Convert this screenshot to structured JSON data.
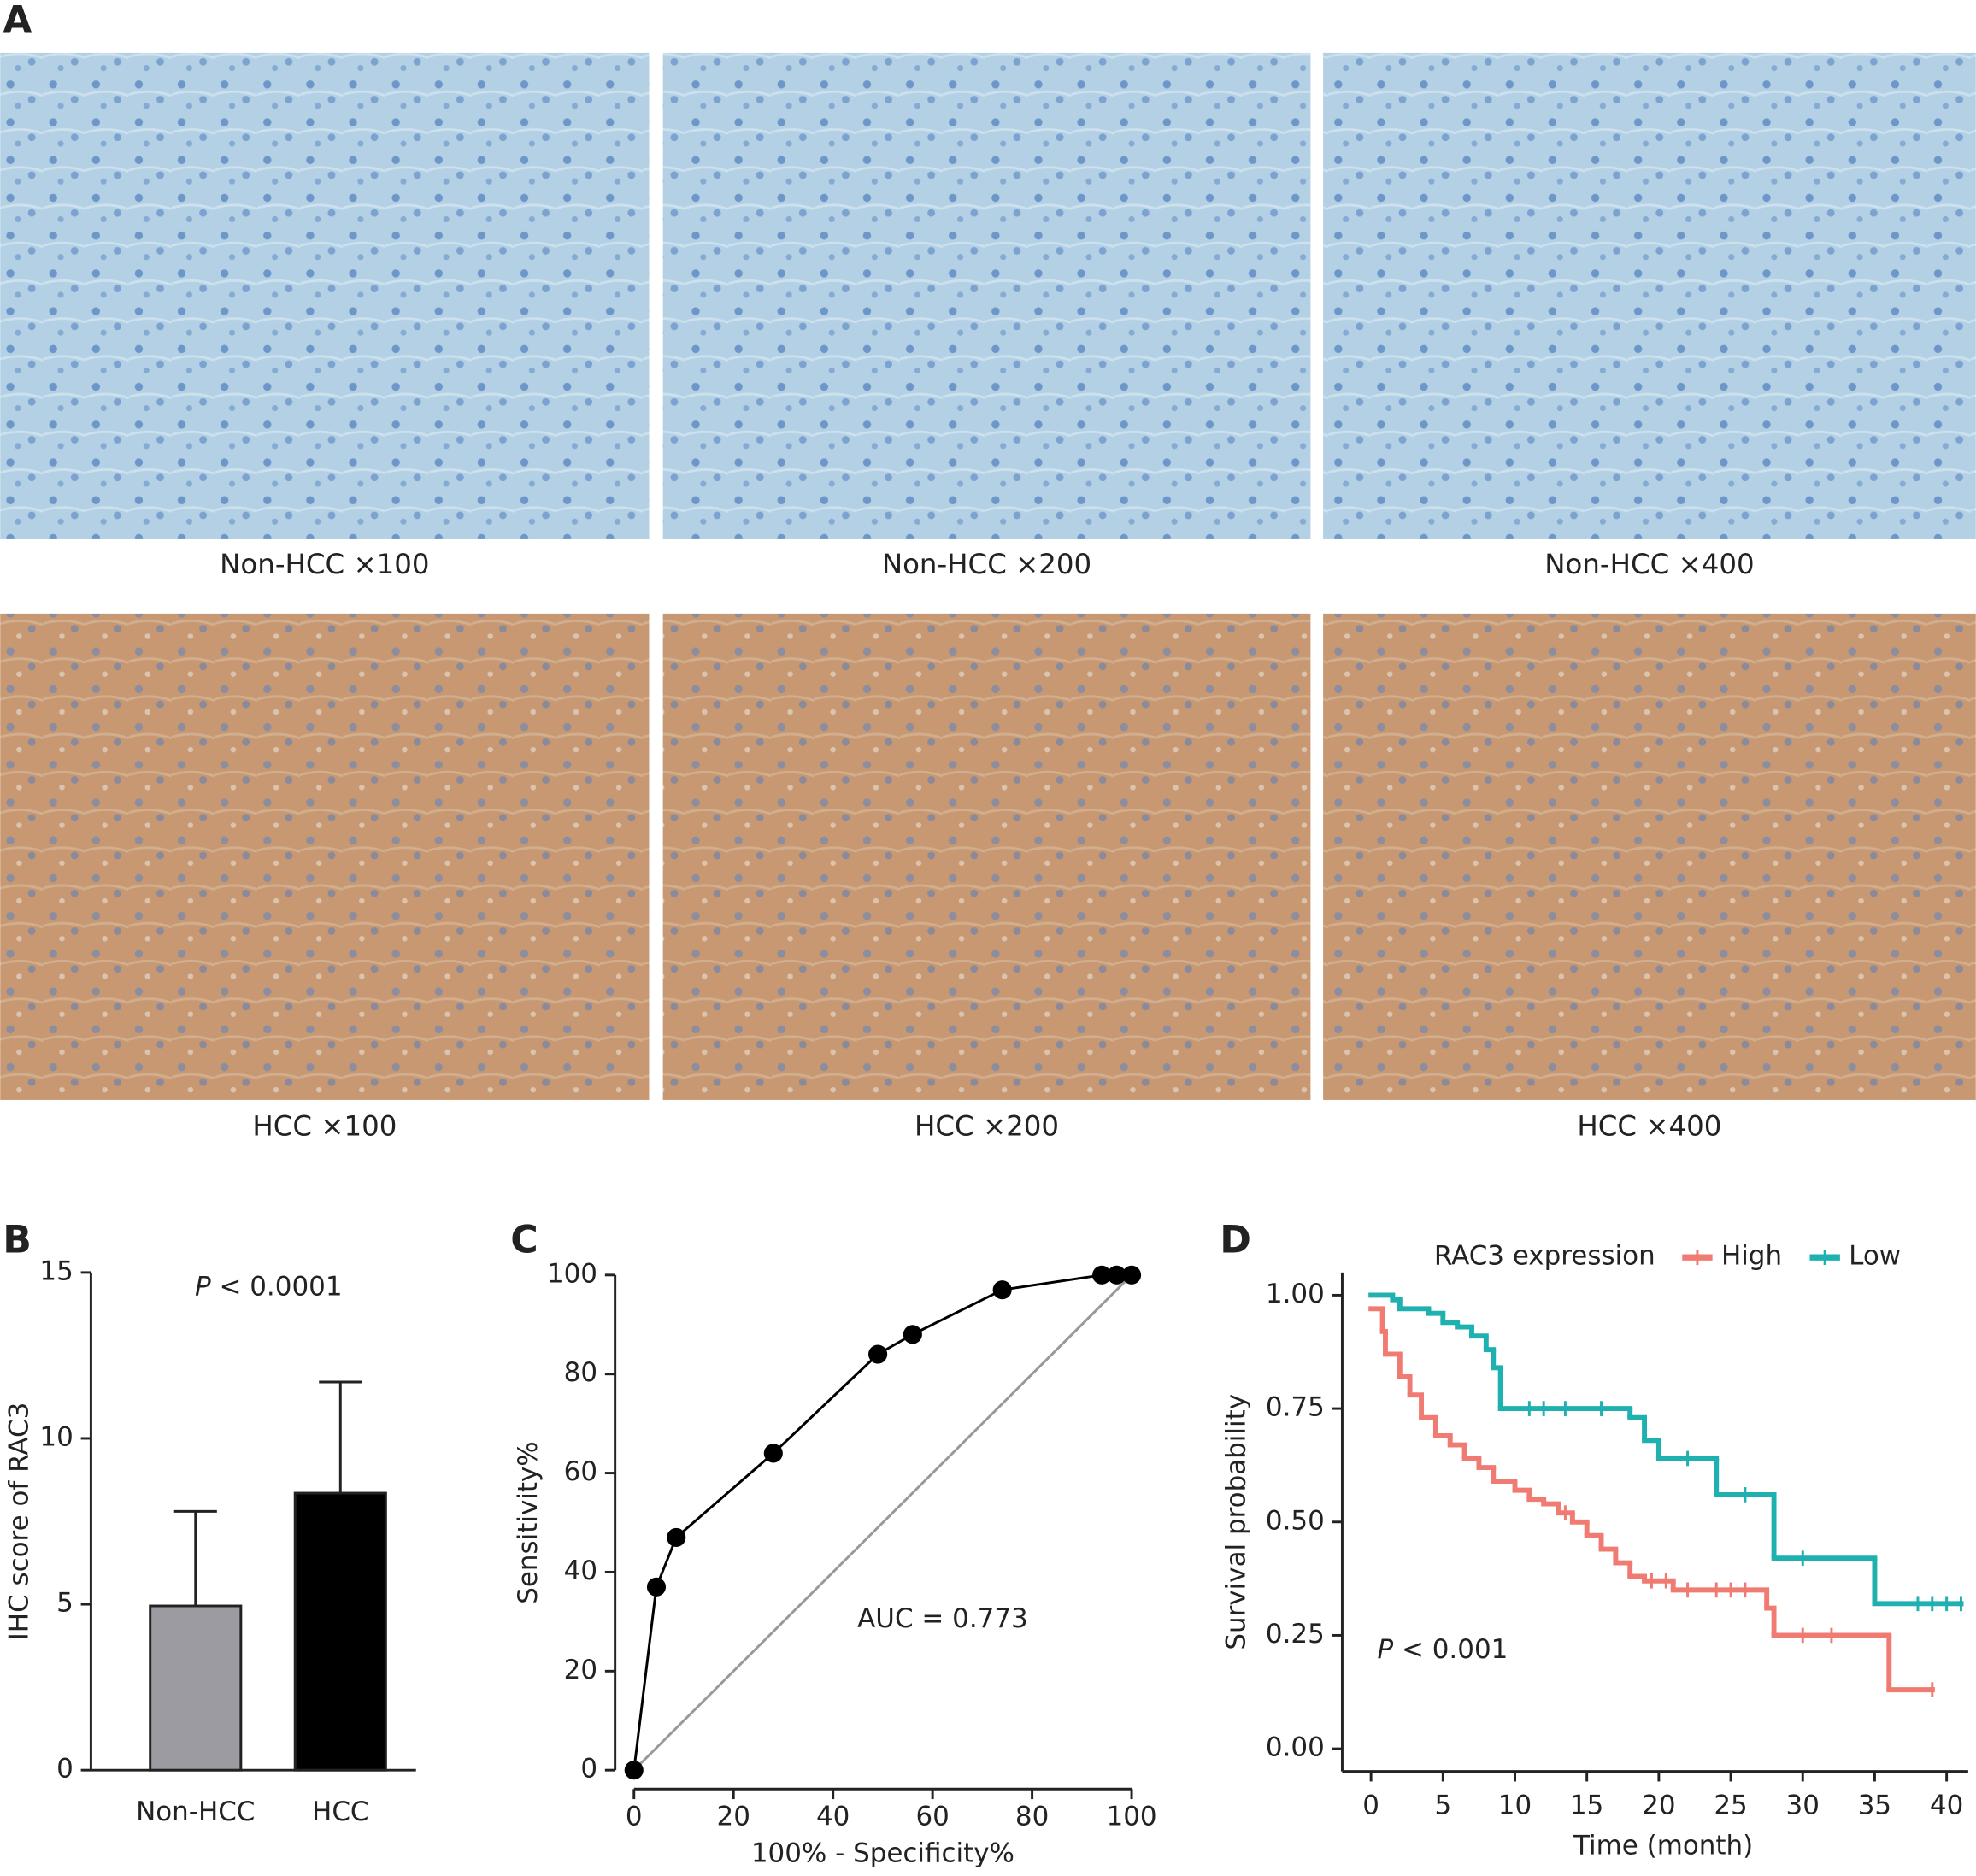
{
  "panels": {
    "a": "A",
    "b": "B",
    "c": "C",
    "d": "D"
  },
  "images": [
    {
      "caption": "Non-HCC ×100"
    },
    {
      "caption": "Non-HCC ×200"
    },
    {
      "caption": "Non-HCC ×400"
    },
    {
      "caption": "HCC ×100"
    },
    {
      "caption": "HCC ×200"
    },
    {
      "caption": "HCC ×400"
    }
  ],
  "chart_data": [
    {
      "type": "bar",
      "ylabel": "IHC score of RAC3",
      "annotation": {
        "italic": "P",
        "text": "< 0.0001"
      },
      "categories": [
        "Non-HCC",
        "HCC"
      ],
      "values": [
        4.95,
        8.35
      ],
      "errors": [
        2.85,
        3.35
      ],
      "colors": [
        "#9b9ba1",
        "#000000"
      ],
      "ylim": [
        0,
        15
      ],
      "yticks": [
        0,
        5,
        10,
        15
      ]
    },
    {
      "type": "scatter",
      "xlabel": "100% - Specificity%",
      "ylabel": "Sensitivity%",
      "annotation": "AUC = 0.773",
      "x": [
        0,
        4.5,
        8.5,
        28,
        49,
        56,
        74,
        94,
        97,
        100
      ],
      "values": [
        0,
        37,
        47,
        64,
        84,
        88,
        97,
        100,
        100,
        100
      ],
      "color": "#000000",
      "reference_color": "#999999",
      "xlim": [
        0,
        100
      ],
      "ylim": [
        0,
        100
      ],
      "xticks": [
        0,
        20,
        40,
        60,
        80,
        100
      ],
      "yticks": [
        0,
        20,
        40,
        60,
        80,
        100
      ]
    },
    {
      "type": "step",
      "legend_title": "RAC3 expression",
      "xlabel": "Time (month)",
      "ylabel": "Survival probability",
      "annotation": {
        "italic": "P",
        "text": "< 0.001"
      },
      "series": [
        {
          "name": "High",
          "color": "#f07b72",
          "x": [
            0,
            0.8,
            1,
            2,
            2.7,
            3.5,
            4.5,
            5.5,
            6.5,
            7.5,
            8.5,
            10,
            11,
            12,
            13,
            14,
            15,
            16,
            17,
            18,
            19,
            21,
            27.5,
            28,
            36,
            39
          ],
          "values": [
            0.97,
            0.92,
            0.87,
            0.82,
            0.78,
            0.73,
            0.69,
            0.67,
            0.64,
            0.62,
            0.59,
            0.57,
            0.55,
            0.54,
            0.52,
            0.5,
            0.47,
            0.44,
            0.41,
            0.38,
            0.37,
            0.35,
            0.31,
            0.25,
            0.13,
            0.13
          ],
          "censored_x": [
            13.5,
            19.5,
            20.5,
            22,
            24,
            25,
            26,
            30,
            32,
            39
          ]
        },
        {
          "name": "Low",
          "color": "#1fb0b0",
          "x": [
            0,
            1.5,
            2,
            4,
            5,
            6,
            7,
            8,
            8.5,
            9,
            18,
            19,
            20,
            24,
            28,
            35,
            41
          ],
          "values": [
            1,
            0.99,
            0.97,
            0.96,
            0.94,
            0.93,
            0.91,
            0.88,
            0.84,
            0.75,
            0.73,
            0.68,
            0.64,
            0.56,
            0.42,
            0.32,
            0.32
          ],
          "censored_x": [
            11,
            12,
            13.5,
            16,
            22,
            26,
            30,
            38,
            39,
            40,
            41
          ]
        }
      ],
      "xlim": [
        -2,
        41.5
      ],
      "ylim": [
        -0.05,
        1.05
      ],
      "xticks": [
        0,
        5,
        10,
        15,
        20,
        25,
        30,
        35,
        40
      ],
      "yticks": [
        {
          "value": 0,
          "label": "0.00"
        },
        {
          "value": 0.25,
          "label": "0.25"
        },
        {
          "value": 0.5,
          "label": "0.50"
        },
        {
          "value": 0.75,
          "label": "0.75"
        },
        {
          "value": 1,
          "label": "1.00"
        }
      ]
    }
  ]
}
